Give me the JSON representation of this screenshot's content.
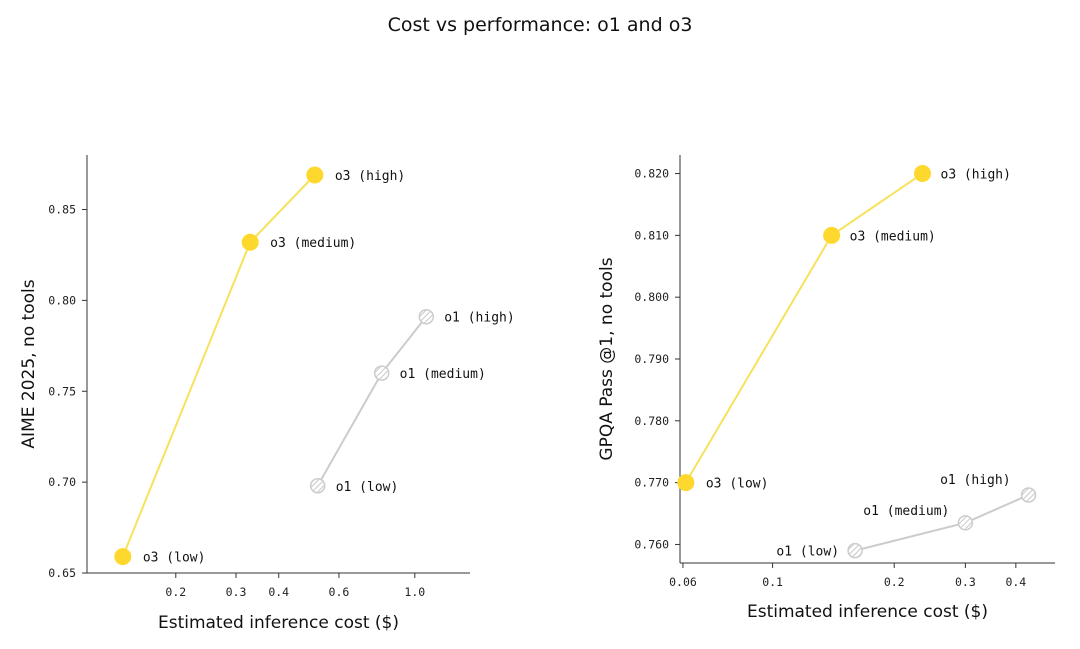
{
  "title": "Cost vs performance: o1 and o3",
  "colors": {
    "o3": "#FFD82E",
    "o3_line": "#F7E25C",
    "o1": "#CCCCCC",
    "axis": "#333333"
  },
  "chart_data": [
    {
      "type": "line",
      "x_scale": "log",
      "xlabel": "Estimated inference cost ($)",
      "ylabel": "AIME 2025, no tools",
      "xlim": [
        0.11,
        1.45
      ],
      "ylim": [
        0.65,
        0.88
      ],
      "xticks": [
        0.2,
        0.3,
        0.4,
        0.6,
        1.0
      ],
      "xtick_labels": [
        "0.2",
        "0.3",
        "0.4",
        "0.6",
        "1.0"
      ],
      "yticks": [
        0.65,
        0.7,
        0.75,
        0.8,
        0.85
      ],
      "ytick_labels": [
        "0.65",
        "0.70",
        "0.75",
        "0.80",
        "0.85"
      ],
      "grid": false,
      "series": [
        {
          "name": "o3",
          "points": [
            {
              "label": "o3 (low)",
              "x": 0.14,
              "y": 0.659
            },
            {
              "label": "o3 (medium)",
              "x": 0.33,
              "y": 0.832
            },
            {
              "label": "o3 (high)",
              "x": 0.51,
              "y": 0.869
            }
          ]
        },
        {
          "name": "o1",
          "points": [
            {
              "label": "o1 (low)",
              "x": 0.52,
              "y": 0.698
            },
            {
              "label": "o1 (medium)",
              "x": 0.8,
              "y": 0.76
            },
            {
              "label": "o1 (high)",
              "x": 1.08,
              "y": 0.791
            }
          ]
        }
      ]
    },
    {
      "type": "line",
      "x_scale": "log",
      "xlabel": "Estimated inference cost ($)",
      "ylabel": "GPQA Pass @1, no tools",
      "xlim": [
        0.059,
        0.5
      ],
      "ylim": [
        0.757,
        0.823
      ],
      "xticks": [
        0.06,
        0.1,
        0.2,
        0.3,
        0.4
      ],
      "xtick_labels": [
        "0.06",
        "0.1",
        "0.2",
        "0.3",
        "0.4"
      ],
      "yticks": [
        0.76,
        0.77,
        0.78,
        0.79,
        0.8,
        0.81,
        0.82
      ],
      "ytick_labels": [
        "0.760",
        "0.770",
        "0.780",
        "0.790",
        "0.800",
        "0.810",
        "0.820"
      ],
      "grid": false,
      "series": [
        {
          "name": "o3",
          "points": [
            {
              "label": "o3 (low)",
              "x": 0.061,
              "y": 0.77
            },
            {
              "label": "o3 (medium)",
              "x": 0.14,
              "y": 0.81
            },
            {
              "label": "o3 (high)",
              "x": 0.235,
              "y": 0.82
            }
          ]
        },
        {
          "name": "o1",
          "points": [
            {
              "label": "o1 (low)",
              "x": 0.16,
              "y": 0.759
            },
            {
              "label": "o1 (medium)",
              "x": 0.3,
              "y": 0.7635
            },
            {
              "label": "o1 (high)",
              "x": 0.43,
              "y": 0.768
            }
          ]
        }
      ]
    }
  ]
}
